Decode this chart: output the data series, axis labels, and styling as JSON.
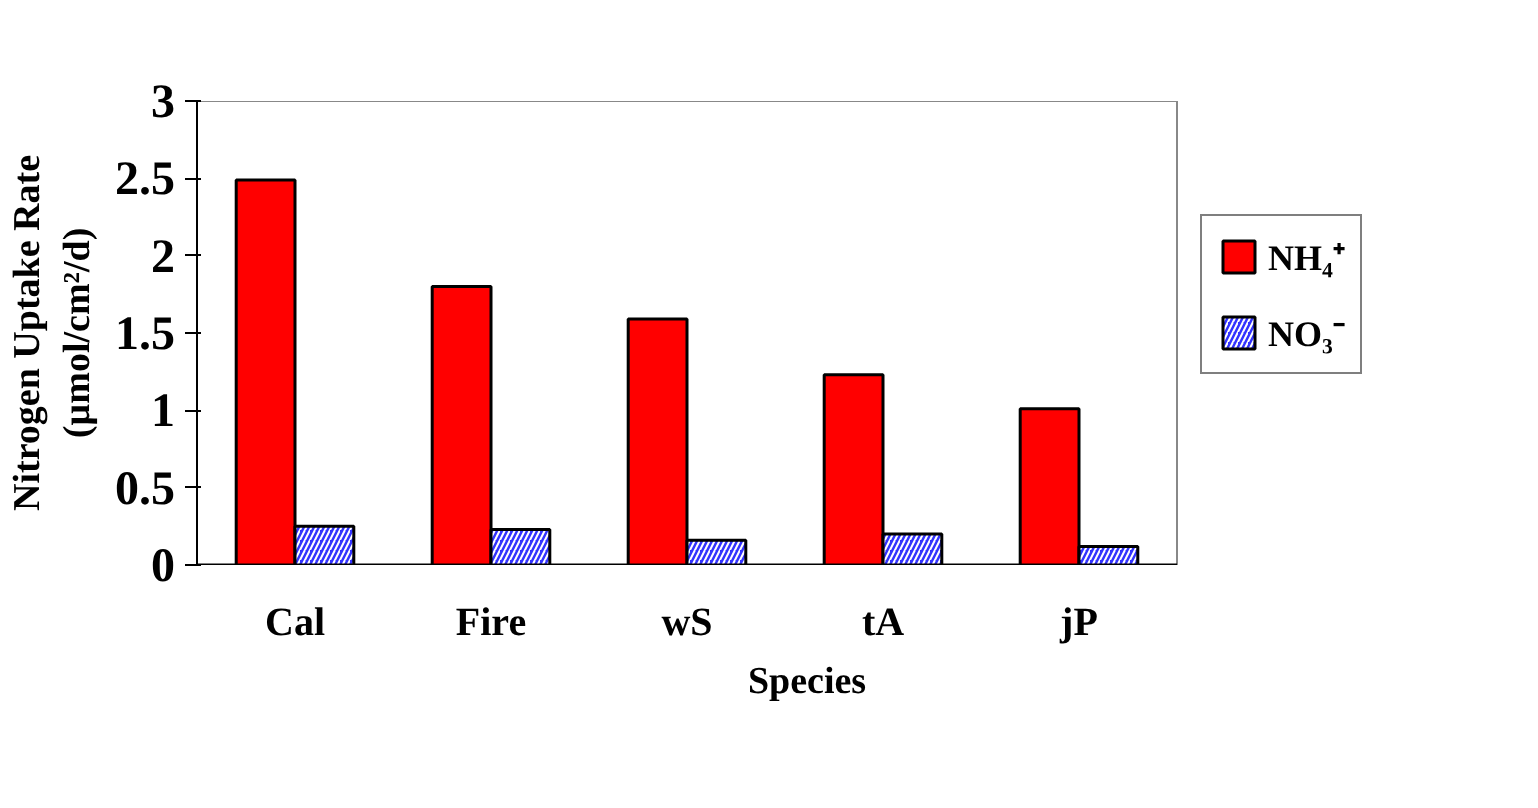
{
  "chart_data": {
    "type": "bar",
    "xlabel": "Species",
    "ylabel": "Nitrogen Uptake Rate\n(µmol/cm²/d)",
    "categories": [
      "Cal",
      "Fire",
      "wS",
      "tA",
      "jP"
    ],
    "series": [
      {
        "name": "NH₄⁺",
        "color": "#ff0000",
        "values": [
          2.49,
          1.8,
          1.59,
          1.23,
          1.01
        ]
      },
      {
        "name": "NO₃⁻",
        "color": "#3333ff",
        "values": [
          0.25,
          0.23,
          0.16,
          0.2,
          0.12
        ]
      }
    ],
    "ylim": [
      0,
      3
    ],
    "yticks": [
      0,
      0.5,
      1,
      1.5,
      2,
      2.5,
      3
    ],
    "grid": false,
    "legend": "right"
  }
}
